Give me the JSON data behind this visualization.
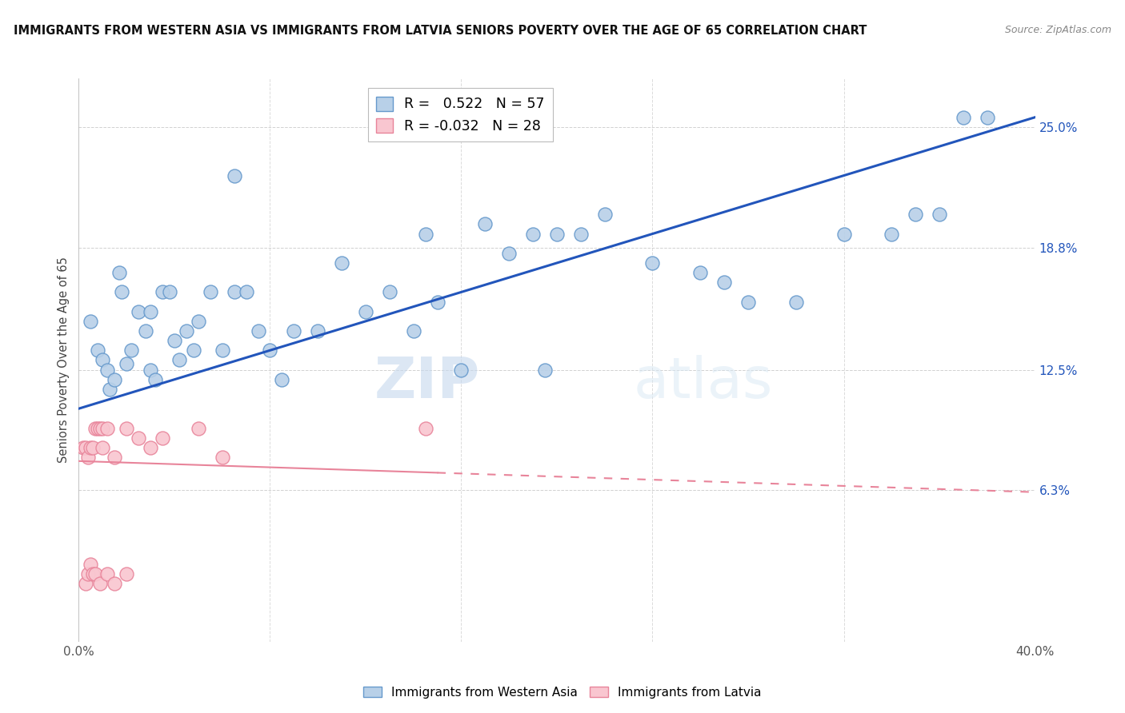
{
  "title": "IMMIGRANTS FROM WESTERN ASIA VS IMMIGRANTS FROM LATVIA SENIORS POVERTY OVER THE AGE OF 65 CORRELATION CHART",
  "source": "Source: ZipAtlas.com",
  "ylabel": "Seniors Poverty Over the Age of 65",
  "yticks": [
    6.3,
    12.5,
    18.8,
    25.0
  ],
  "xlim": [
    0.0,
    40.0
  ],
  "ylim": [
    -1.5,
    27.5
  ],
  "legend_blue_r": "0.522",
  "legend_blue_n": "57",
  "legend_pink_r": "-0.032",
  "legend_pink_n": "28",
  "legend_label_blue": "Immigrants from Western Asia",
  "legend_label_pink": "Immigrants from Latvia",
  "watermark_zip": "ZIP",
  "watermark_atlas": "atlas",
  "blue_color": "#b8d0e8",
  "blue_edge": "#6699cc",
  "pink_color": "#f9c6d0",
  "pink_edge": "#e8849a",
  "trend_blue": "#2255bb",
  "trend_pink": "#e8849a",
  "blue_x": [
    0.5,
    0.8,
    1.0,
    1.2,
    1.3,
    1.5,
    1.7,
    1.8,
    2.0,
    2.2,
    2.5,
    2.8,
    3.0,
    3.0,
    3.2,
    3.5,
    3.8,
    4.0,
    4.2,
    4.5,
    4.8,
    5.0,
    5.5,
    6.0,
    6.5,
    7.0,
    7.5,
    8.0,
    8.5,
    9.0,
    10.0,
    11.0,
    12.0,
    13.0,
    14.0,
    15.0,
    16.0,
    17.0,
    18.0,
    19.0,
    20.0,
    21.0,
    22.0,
    24.0,
    26.0,
    27.0,
    28.0,
    30.0,
    32.0,
    34.0,
    35.0,
    36.0,
    37.0,
    38.0,
    6.5,
    14.5,
    19.5
  ],
  "blue_y": [
    15.0,
    13.5,
    13.0,
    12.5,
    11.5,
    12.0,
    17.5,
    16.5,
    12.8,
    13.5,
    15.5,
    14.5,
    12.5,
    15.5,
    12.0,
    16.5,
    16.5,
    14.0,
    13.0,
    14.5,
    13.5,
    15.0,
    16.5,
    13.5,
    16.5,
    16.5,
    14.5,
    13.5,
    12.0,
    14.5,
    14.5,
    18.0,
    15.5,
    16.5,
    14.5,
    16.0,
    12.5,
    20.0,
    18.5,
    19.5,
    19.5,
    19.5,
    20.5,
    18.0,
    17.5,
    17.0,
    16.0,
    16.0,
    19.5,
    19.5,
    20.5,
    20.5,
    25.5,
    25.5,
    22.5,
    19.5,
    12.5
  ],
  "pink_x": [
    0.2,
    0.3,
    0.4,
    0.5,
    0.6,
    0.7,
    0.8,
    0.9,
    1.0,
    1.0,
    1.2,
    1.5,
    2.0,
    2.5,
    3.0,
    3.5,
    5.0,
    6.0,
    0.3,
    0.4,
    0.5,
    0.6,
    0.7,
    0.9,
    1.2,
    1.5,
    2.0,
    14.5
  ],
  "pink_y": [
    8.5,
    8.5,
    8.0,
    8.5,
    8.5,
    9.5,
    9.5,
    9.5,
    8.5,
    9.5,
    9.5,
    8.0,
    9.5,
    9.0,
    8.5,
    9.0,
    9.5,
    8.0,
    1.5,
    2.0,
    2.5,
    2.0,
    2.0,
    1.5,
    2.0,
    1.5,
    2.0,
    9.5
  ]
}
